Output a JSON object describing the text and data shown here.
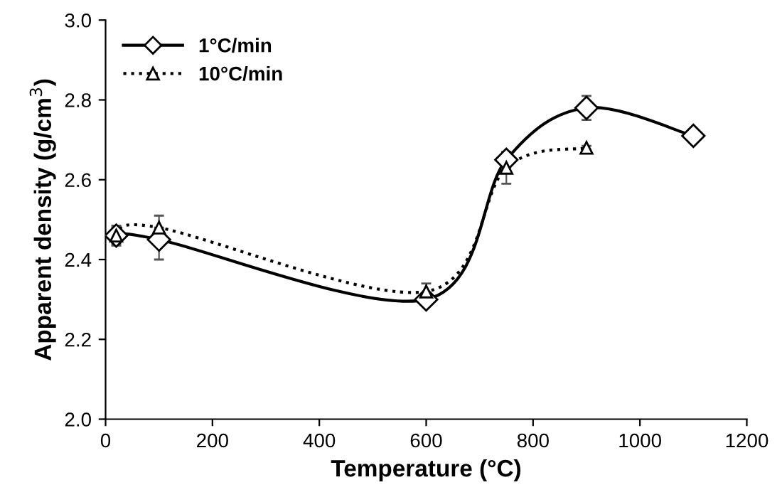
{
  "chart_data": {
    "type": "line",
    "xlabel": "Temperature (°C)",
    "ylabel": "Apparent density (g/cm$^{3}$)",
    "xlim": [
      0,
      1200
    ],
    "xticks": [
      0,
      200,
      400,
      600,
      800,
      1000,
      1200
    ],
    "ylim": [
      2.0,
      3.0
    ],
    "yticks": [
      {
        "value": 2.0,
        "label": "2.0"
      },
      2.2,
      2.4,
      2.6,
      2.8,
      {
        "value": 3.0,
        "label": "3.0"
      }
    ],
    "grid": false,
    "legend": "top left",
    "series": [
      {
        "name": "1°C/min",
        "color": "#000000",
        "marker": "diamond",
        "line_style": "solid",
        "x": [
          20,
          100,
          600,
          750,
          900,
          1100
        ],
        "values": [
          2.46,
          2.45,
          2.3,
          2.65,
          2.78,
          2.71
        ],
        "errors": [
          0.02,
          [
            2.4,
            2.48
          ],
          0.015,
          0.02,
          0.03,
          0.01
        ]
      },
      {
        "name": "10°C/min",
        "color": "#000000",
        "marker": "triangle",
        "line_style": "dotted",
        "x": [
          20,
          100,
          600,
          750,
          900
        ],
        "values": [
          2.46,
          2.48,
          2.32,
          2.63,
          2.68
        ],
        "errors": [
          0.025,
          0.03,
          0.02,
          0.04,
          0.005
        ]
      }
    ]
  }
}
